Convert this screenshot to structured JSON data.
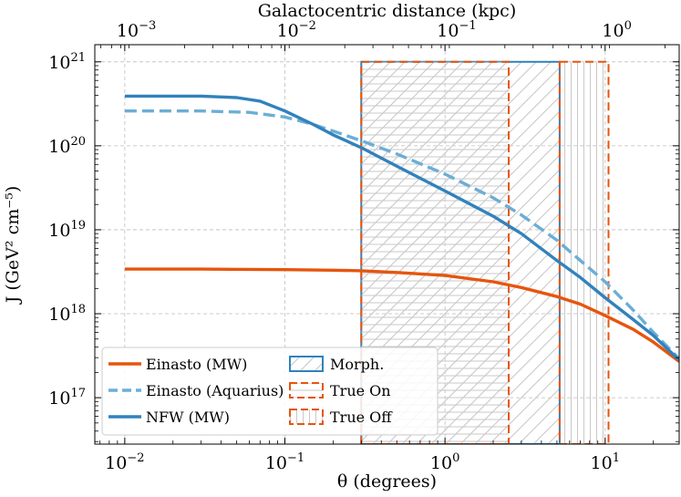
{
  "chart_data": {
    "type": "line",
    "xlabel": "θ (degrees)",
    "ylabel": "J (GeV² cm⁻⁵)",
    "top_xlabel": "Galactocentric distance (kpc)",
    "x_scale": "log",
    "y_scale": "log",
    "xlim": [
      0.0065,
      29
    ],
    "ylim": [
      2.8e+16,
      1.6e+21
    ],
    "top_xlim": [
      0.00055,
      2.45
    ],
    "grid": true,
    "legend_position": "lower-left",
    "x_ticks": [
      {
        "value": 0.01,
        "base": "10",
        "exp": "−2"
      },
      {
        "value": 0.1,
        "base": "10",
        "exp": "−1"
      },
      {
        "value": 1,
        "base": "10",
        "exp": "0"
      },
      {
        "value": 10,
        "base": "10",
        "exp": "1"
      }
    ],
    "y_ticks": [
      {
        "value": 1e+17,
        "base": "10",
        "exp": "17"
      },
      {
        "value": 1e+18,
        "base": "10",
        "exp": "18"
      },
      {
        "value": 1e+19,
        "base": "10",
        "exp": "19"
      },
      {
        "value": 1e+20,
        "base": "10",
        "exp": "20"
      },
      {
        "value": 1e+21,
        "base": "10",
        "exp": "21"
      }
    ],
    "top_x_ticks": [
      {
        "value": 0.001,
        "base": "10",
        "exp": "−3"
      },
      {
        "value": 0.01,
        "base": "10",
        "exp": "−2"
      },
      {
        "value": 0.1,
        "base": "10",
        "exp": "−1"
      },
      {
        "value": 1,
        "base": "10",
        "exp": "0"
      }
    ],
    "series": [
      {
        "name": "Einasto (MW)",
        "color": "#e6550d",
        "dash": "solid",
        "x": [
          0.01,
          0.03,
          0.1,
          0.2,
          0.3,
          0.5,
          1,
          2,
          3,
          5,
          7,
          10,
          15,
          20,
          29
        ],
        "y": [
          3.4e+18,
          3.4e+18,
          3.35e+18,
          3.3e+18,
          3.25e+18,
          3.1e+18,
          2.85e+18,
          2.4e+18,
          2.05e+18,
          1.6e+18,
          1.3e+18,
          9.5e+17,
          6.5e+17,
          4.6e+17,
          2.7e+17
        ]
      },
      {
        "name": "Einasto (Aquarius)",
        "color": "#6baed6",
        "dash": "dashed",
        "x": [
          0.01,
          0.03,
          0.06,
          0.1,
          0.15,
          0.2,
          0.3,
          0.5,
          1,
          2,
          3,
          5,
          7,
          10,
          15,
          20,
          29
        ],
        "y": [
          2.6e+20,
          2.6e+20,
          2.5e+20,
          2.2e+20,
          1.8e+20,
          1.5e+20,
          1.15e+20,
          8e+19,
          4.6e+19,
          2.4e+19,
          1.5e+19,
          7.5e+18,
          4.3e+18,
          2.4e+18,
          1.1e+18,
          6e+17,
          2.9e+17
        ]
      },
      {
        "name": "NFW (MW)",
        "color": "#3182bd",
        "dash": "solid",
        "x": [
          0.01,
          0.03,
          0.05,
          0.07,
          0.1,
          0.15,
          0.2,
          0.3,
          0.5,
          1,
          2,
          3,
          5,
          7,
          10,
          15,
          20,
          29
        ],
        "y": [
          3.9e+20,
          3.9e+20,
          3.75e+20,
          3.4e+20,
          2.6e+20,
          1.8e+20,
          1.35e+20,
          9.5e+19,
          5.7e+19,
          2.9e+19,
          1.45e+19,
          9e+18,
          4.3e+18,
          2.7e+18,
          1.55e+18,
          8.5e+17,
          5.5e+17,
          2.8e+17
        ]
      }
    ],
    "regions": [
      {
        "name": "Morph.",
        "x": [
          0.3,
          5.2
        ],
        "style": "hatch-diagonal"
      },
      {
        "name": "True On",
        "x": [
          0.3,
          2.5
        ],
        "style": "hatch-horizontal"
      },
      {
        "name": "True Off",
        "x": [
          5.2,
          10.5
        ],
        "style": "hatch-vertical"
      }
    ],
    "region_top": 1e+21,
    "colors": {
      "hatch": "#c8c8c8",
      "region_on_off_edge": "#e6550d",
      "region_morph_edge": "#3182bd",
      "grid": "#bdbdbd"
    },
    "legend": {
      "left": [
        {
          "label": "Einasto (MW)",
          "kind": "line",
          "series": 0
        },
        {
          "label": "Einasto (Aquarius)",
          "kind": "line",
          "series": 1
        },
        {
          "label": "NFW (MW)",
          "kind": "line",
          "series": 2
        }
      ],
      "right": [
        {
          "label": "Morph.",
          "kind": "patch",
          "region": 0
        },
        {
          "label": "True On",
          "kind": "patch",
          "region": 1
        },
        {
          "label": "True Off",
          "kind": "patch",
          "region": 2
        }
      ]
    }
  }
}
